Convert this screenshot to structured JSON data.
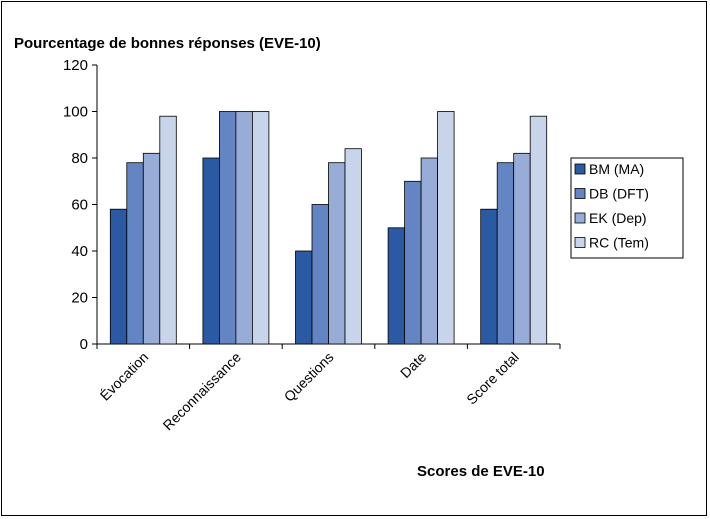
{
  "chart_data": {
    "type": "bar",
    "title": "",
    "ylabel": "Pourcentage de bonnes réponses (EVE-10)",
    "xlabel": "Scores de EVE-10",
    "categories": [
      "Évocation",
      "Reconnaissance",
      "Questions",
      "Date",
      "Score total"
    ],
    "ylim": [
      0,
      120
    ],
    "yticks": [
      0,
      20,
      40,
      60,
      80,
      100,
      120
    ],
    "grid": false,
    "legend_position": "right",
    "series": [
      {
        "name": "BM (MA)",
        "color": "#2a5aa4",
        "values": [
          58,
          80,
          40,
          50,
          58
        ]
      },
      {
        "name": "DB (DFT)",
        "color": "#6385c3",
        "values": [
          78,
          100,
          60,
          70,
          78
        ]
      },
      {
        "name": "EK (Dep)",
        "color": "#97acd6",
        "values": [
          82,
          100,
          78,
          80,
          82
        ]
      },
      {
        "name": "RC (Tem)",
        "color": "#c8d4ea",
        "values": [
          98,
          100,
          84,
          100,
          98
        ]
      }
    ]
  }
}
